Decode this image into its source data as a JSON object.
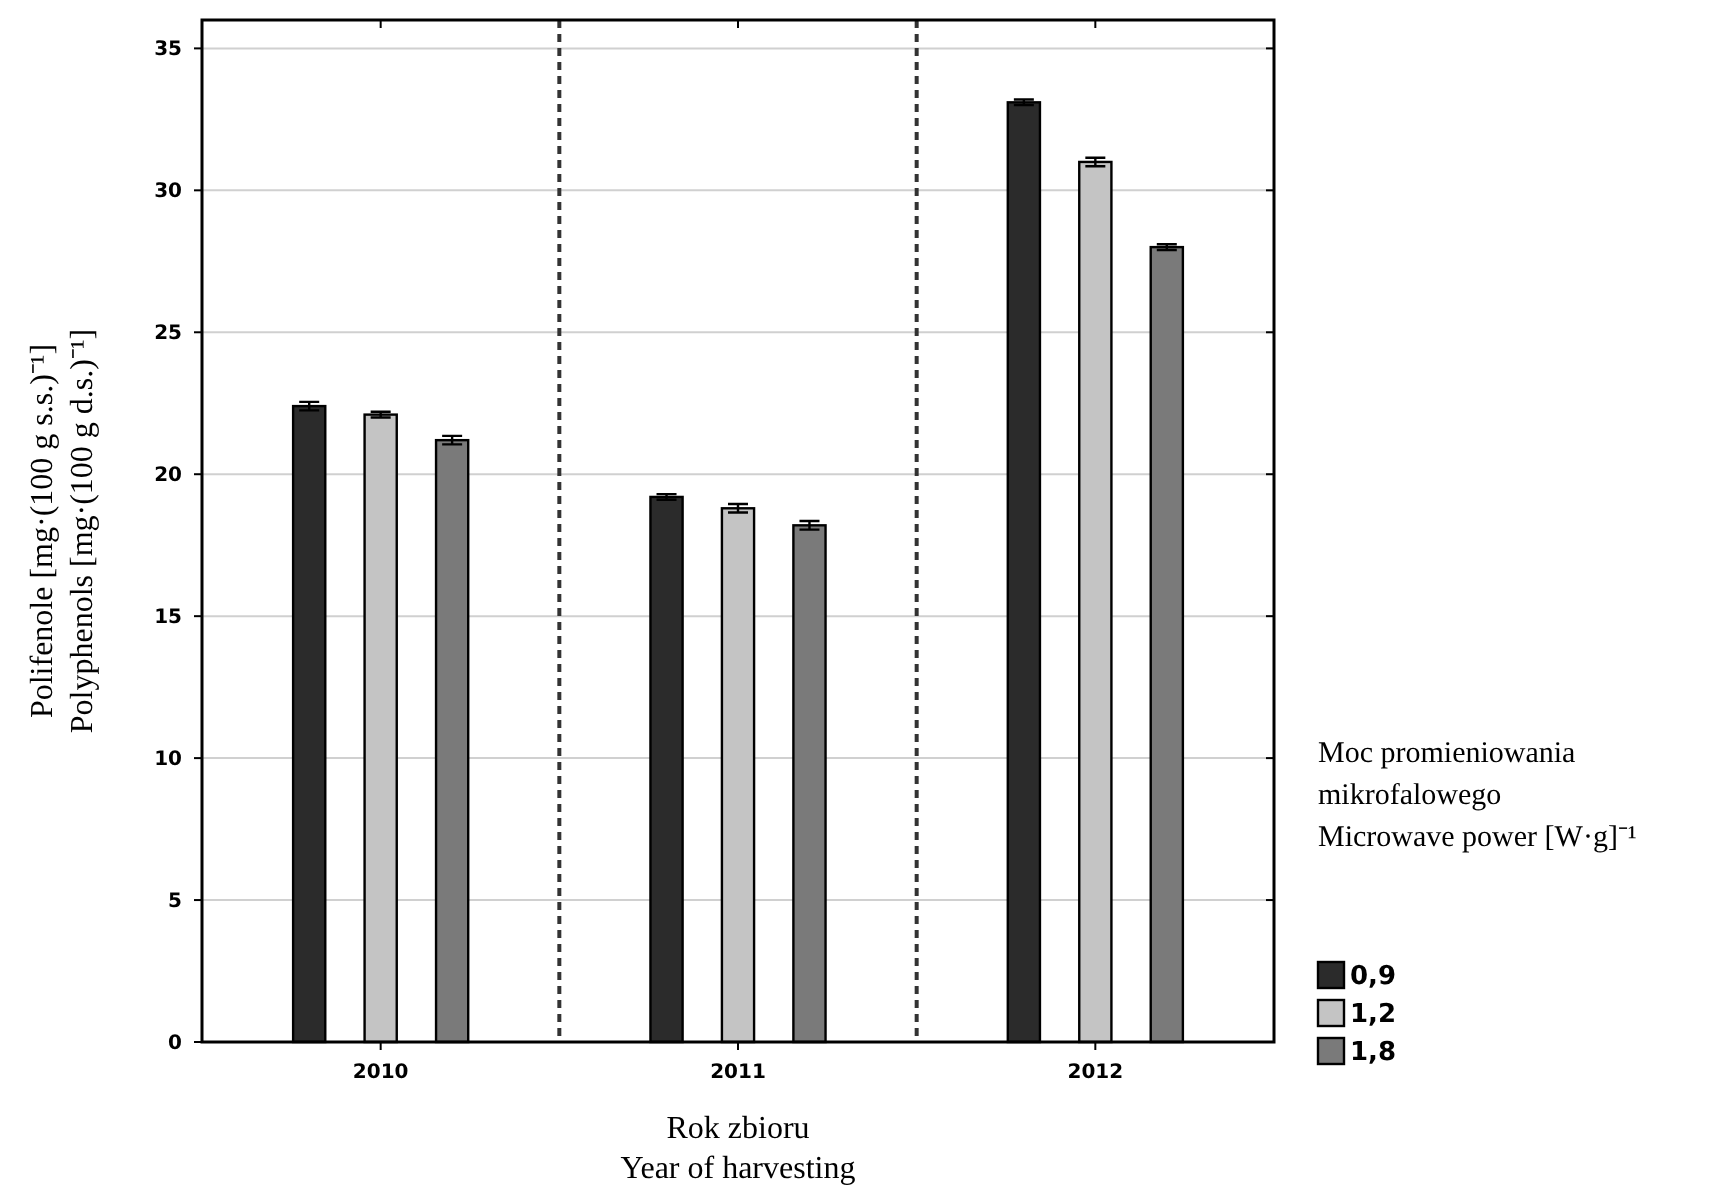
{
  "chart_data": {
    "type": "bar",
    "categories": [
      "2010",
      "2011",
      "2012"
    ],
    "series": [
      {
        "name": "0,9",
        "color": "#2b2b2b",
        "values": [
          22.4,
          19.2,
          33.1
        ],
        "errors": [
          0.15,
          0.1,
          0.1
        ]
      },
      {
        "name": "1,2",
        "color": "#c4c4c4",
        "values": [
          22.1,
          18.8,
          31.0
        ],
        "errors": [
          0.1,
          0.15,
          0.15
        ]
      },
      {
        "name": "1,8",
        "color": "#7a7a7a",
        "values": [
          21.2,
          18.2,
          28.0
        ],
        "errors": [
          0.15,
          0.15,
          0.1
        ]
      }
    ],
    "ylim": [
      0,
      36
    ],
    "yticks": [
      0,
      5,
      10,
      15,
      20,
      25,
      30,
      35
    ],
    "grid": "y",
    "ylabel": "Polifenole [mg·(100 g s.s.)⁻¹]\nPolyphenols [mg·(100 g d.s.)⁻¹]",
    "xlabel": "Rok zbioru\nYear of harvesting",
    "legend_title": "Moc promieniowania\nmikrofalowego\nMicrowave power [W·g]⁻¹",
    "legend": "right"
  }
}
